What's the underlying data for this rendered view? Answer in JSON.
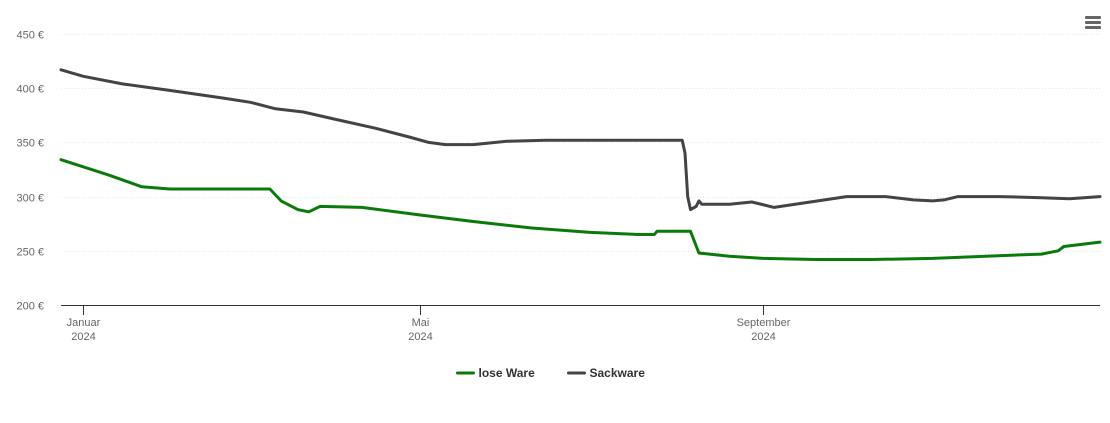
{
  "chart_data": {
    "type": "line",
    "title": "",
    "xlabel": "",
    "ylabel": "",
    "ylim": [
      200,
      450
    ],
    "y_ticks": [
      "200 €",
      "250 €",
      "300 €",
      "350 €",
      "400 €",
      "450 €"
    ],
    "y_tick_values": [
      200,
      250,
      300,
      350,
      400,
      450
    ],
    "x_ticks": [
      {
        "date": "2024-01-01",
        "label_line1": "Januar",
        "label_line2": "2024"
      },
      {
        "date": "2024-05-01",
        "label_line1": "Mai",
        "label_line2": "2024"
      },
      {
        "date": "2024-09-01",
        "label_line1": "September",
        "label_line2": "2024"
      }
    ],
    "xlim": [
      "2023-12-24",
      "2024-12-31"
    ],
    "grid": true,
    "legend_position": "bottom-center",
    "series": [
      {
        "name": "lose Ware",
        "color": "#0a7a0a",
        "points": [
          [
            "2023-12-24",
            334
          ],
          [
            "2024-01-10",
            320
          ],
          [
            "2024-01-22",
            309
          ],
          [
            "2024-02-01",
            307
          ],
          [
            "2024-02-10",
            307
          ],
          [
            "2024-03-01",
            307
          ],
          [
            "2024-03-08",
            307
          ],
          [
            "2024-03-12",
            296
          ],
          [
            "2024-03-18",
            288
          ],
          [
            "2024-03-22",
            286
          ],
          [
            "2024-03-26",
            291
          ],
          [
            "2024-04-10",
            290
          ],
          [
            "2024-05-01",
            283
          ],
          [
            "2024-05-20",
            277
          ],
          [
            "2024-06-10",
            271
          ],
          [
            "2024-07-01",
            267
          ],
          [
            "2024-07-18",
            265
          ],
          [
            "2024-07-24",
            265
          ],
          [
            "2024-07-25",
            268
          ],
          [
            "2024-08-01",
            268
          ],
          [
            "2024-08-06",
            268
          ],
          [
            "2024-08-09",
            248
          ],
          [
            "2024-08-20",
            245
          ],
          [
            "2024-09-01",
            243
          ],
          [
            "2024-09-20",
            242
          ],
          [
            "2024-10-10",
            242
          ],
          [
            "2024-11-01",
            243
          ],
          [
            "2024-11-20",
            245
          ],
          [
            "2024-12-10",
            247
          ],
          [
            "2024-12-16",
            250
          ],
          [
            "2024-12-18",
            254
          ],
          [
            "2024-12-31",
            258
          ]
        ]
      },
      {
        "name": "Sackware",
        "color": "#434348",
        "points": [
          [
            "2023-12-24",
            417
          ],
          [
            "2024-01-01",
            411
          ],
          [
            "2024-01-15",
            404
          ],
          [
            "2024-02-01",
            398
          ],
          [
            "2024-02-20",
            391
          ],
          [
            "2024-03-01",
            387
          ],
          [
            "2024-03-10",
            381
          ],
          [
            "2024-03-20",
            378
          ],
          [
            "2024-04-01",
            371
          ],
          [
            "2024-04-15",
            363
          ],
          [
            "2024-04-27",
            355
          ],
          [
            "2024-05-04",
            350
          ],
          [
            "2024-05-10",
            348
          ],
          [
            "2024-05-20",
            348
          ],
          [
            "2024-06-01",
            351
          ],
          [
            "2024-06-15",
            352
          ],
          [
            "2024-07-01",
            352
          ],
          [
            "2024-07-20",
            352
          ],
          [
            "2024-08-03",
            352
          ],
          [
            "2024-08-04",
            340
          ],
          [
            "2024-08-05",
            300
          ],
          [
            "2024-08-06",
            288
          ],
          [
            "2024-08-08",
            291
          ],
          [
            "2024-08-09",
            296
          ],
          [
            "2024-08-10",
            293
          ],
          [
            "2024-08-20",
            293
          ],
          [
            "2024-08-28",
            295
          ],
          [
            "2024-09-05",
            290
          ],
          [
            "2024-09-18",
            295
          ],
          [
            "2024-10-01",
            300
          ],
          [
            "2024-10-15",
            300
          ],
          [
            "2024-10-25",
            297
          ],
          [
            "2024-11-01",
            296
          ],
          [
            "2024-11-05",
            297
          ],
          [
            "2024-11-10",
            300
          ],
          [
            "2024-11-25",
            300
          ],
          [
            "2024-12-10",
            299
          ],
          [
            "2024-12-20",
            298
          ],
          [
            "2024-12-31",
            300
          ]
        ]
      }
    ]
  },
  "menu": {
    "icon": "hamburger-menu-icon",
    "color": "#666666"
  },
  "colors": {
    "grid": "#e6e6e6",
    "axis": "#333333",
    "tick": "#666666"
  }
}
